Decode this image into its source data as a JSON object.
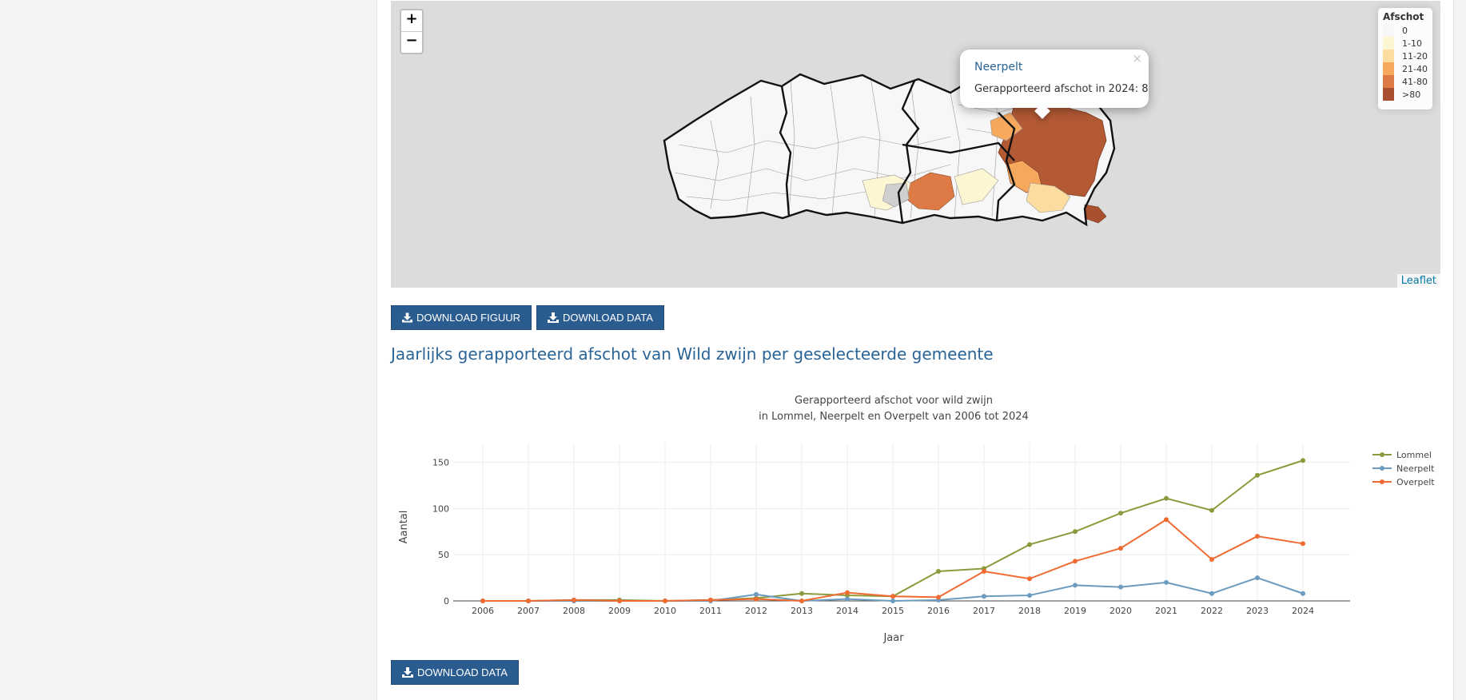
{
  "map": {
    "zoom_in": "+",
    "zoom_out": "−",
    "legend": {
      "title": "Afschot",
      "items": [
        {
          "label": "0",
          "color": "#f7f7f7"
        },
        {
          "label": "1-10",
          "color": "#fdf6d2"
        },
        {
          "label": "11-20",
          "color": "#fddca0"
        },
        {
          "label": "21-40",
          "color": "#f6a85c"
        },
        {
          "label": "41-80",
          "color": "#dd7a45"
        },
        {
          "label": ">80",
          "color": "#a8502f"
        }
      ]
    },
    "popup": {
      "close": "×",
      "name": "Neerpelt",
      "label": "Gerapporteerd afschot in 2024",
      "value": "8"
    },
    "attribution": "Leaflet"
  },
  "buttons": {
    "download_figure": "DOWNLOAD FIGUUR",
    "download_data": "DOWNLOAD DATA",
    "download_data_bottom": "DOWNLOAD DATA"
  },
  "section_title": "Jaarlijks gerapporteerd afschot van Wild zwijn per geselecteerde gemeente",
  "chart_data": {
    "type": "line",
    "title": "Gerapporteerd afschot voor wild zwijn",
    "subtitle": "in Lommel, Neerpelt en Overpelt van 2006 tot 2024",
    "xlabel": "Jaar",
    "ylabel": "Aantal",
    "ylim": [
      0,
      160
    ],
    "yticks": [
      0,
      50,
      100,
      150
    ],
    "grid": true,
    "legend_position": "right",
    "x": [
      2006,
      2007,
      2008,
      2009,
      2010,
      2011,
      2012,
      2013,
      2014,
      2015,
      2016,
      2017,
      2018,
      2019,
      2020,
      2021,
      2022,
      2023,
      2024
    ],
    "series": [
      {
        "name": "Lommel",
        "color": "#8c9a3c",
        "values": [
          0,
          0,
          1,
          1,
          0,
          1,
          3,
          8,
          6,
          5,
          32,
          35,
          61,
          75,
          95,
          111,
          98,
          136,
          152
        ]
      },
      {
        "name": "Neerpelt",
        "color": "#6b9bbf",
        "values": [
          0,
          0,
          0,
          0,
          0,
          0,
          7,
          0,
          2,
          0,
          1,
          5,
          6,
          17,
          15,
          20,
          8,
          25,
          8
        ]
      },
      {
        "name": "Overpelt",
        "color": "#f06b32",
        "values": [
          0,
          0,
          1,
          0,
          0,
          1,
          2,
          0,
          9,
          5,
          4,
          32,
          24,
          43,
          57,
          88,
          45,
          70,
          62
        ]
      }
    ]
  }
}
